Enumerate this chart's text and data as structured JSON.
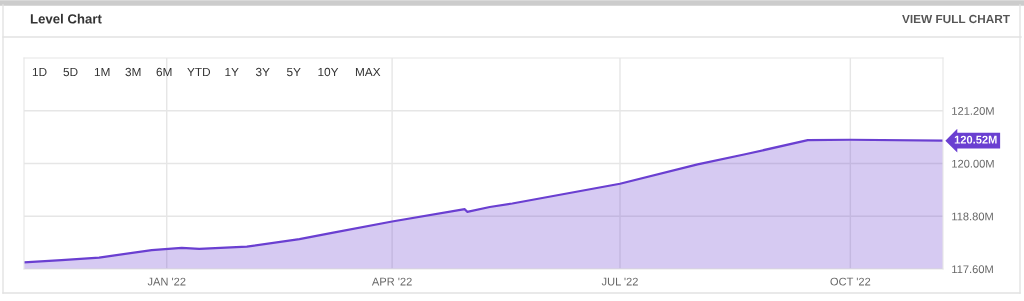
{
  "chart_data": {
    "type": "area",
    "title": "Level Chart",
    "annotations": [
      "VIEW FULL CHART",
      "1D",
      "5D",
      "1M",
      "3M",
      "6M",
      "YTD",
      "1Y",
      "3Y",
      "5Y",
      "10Y",
      "MAX",
      {
        "text": "120.52M",
        "x": "2022-11-07",
        "y": 120.52
      }
    ],
    "x": [
      "2021-11-05",
      "2021-11-20",
      "2021-12-05",
      "2021-12-26",
      "2022-01-07",
      "2022-01-14",
      "2022-02-02",
      "2022-02-23",
      "2022-03-08",
      "2022-04-01",
      "2022-04-30",
      "2022-05-01",
      "2022-05-10",
      "2022-05-19",
      "2022-07-01",
      "2022-08-01",
      "2022-08-20",
      "2022-09-14",
      "2022-10-01",
      "2022-11-07"
    ],
    "series": [
      {
        "color": "#6a3fd1",
        "values": [
          117.75,
          117.8,
          117.86,
          118.03,
          118.08,
          118.06,
          118.11,
          118.28,
          118.42,
          118.68,
          118.96,
          118.9,
          119.01,
          119.09,
          119.54,
          119.98,
          120.21,
          120.53,
          120.54,
          120.52
        ]
      }
    ],
    "xlim": [
      "2021-11-05",
      "2022-11-07"
    ],
    "xticks": [
      {
        "value": "2022-01-01",
        "label": "JAN '22"
      },
      {
        "value": "2022-04-01",
        "label": "APR '22"
      },
      {
        "value": "2022-07-01",
        "label": "JUL '22"
      },
      {
        "value": "2022-10-01",
        "label": "OCT '22"
      }
    ],
    "ylim": [
      117.6,
      122.4
    ],
    "yticks": [
      {
        "value": 117.6,
        "label": "117.60M"
      },
      {
        "value": 118.8,
        "label": "118.80M"
      },
      {
        "value": 120.0,
        "label": "120.00M"
      },
      {
        "value": 121.2,
        "label": "121.20M"
      }
    ],
    "grid": true,
    "legend": false
  }
}
